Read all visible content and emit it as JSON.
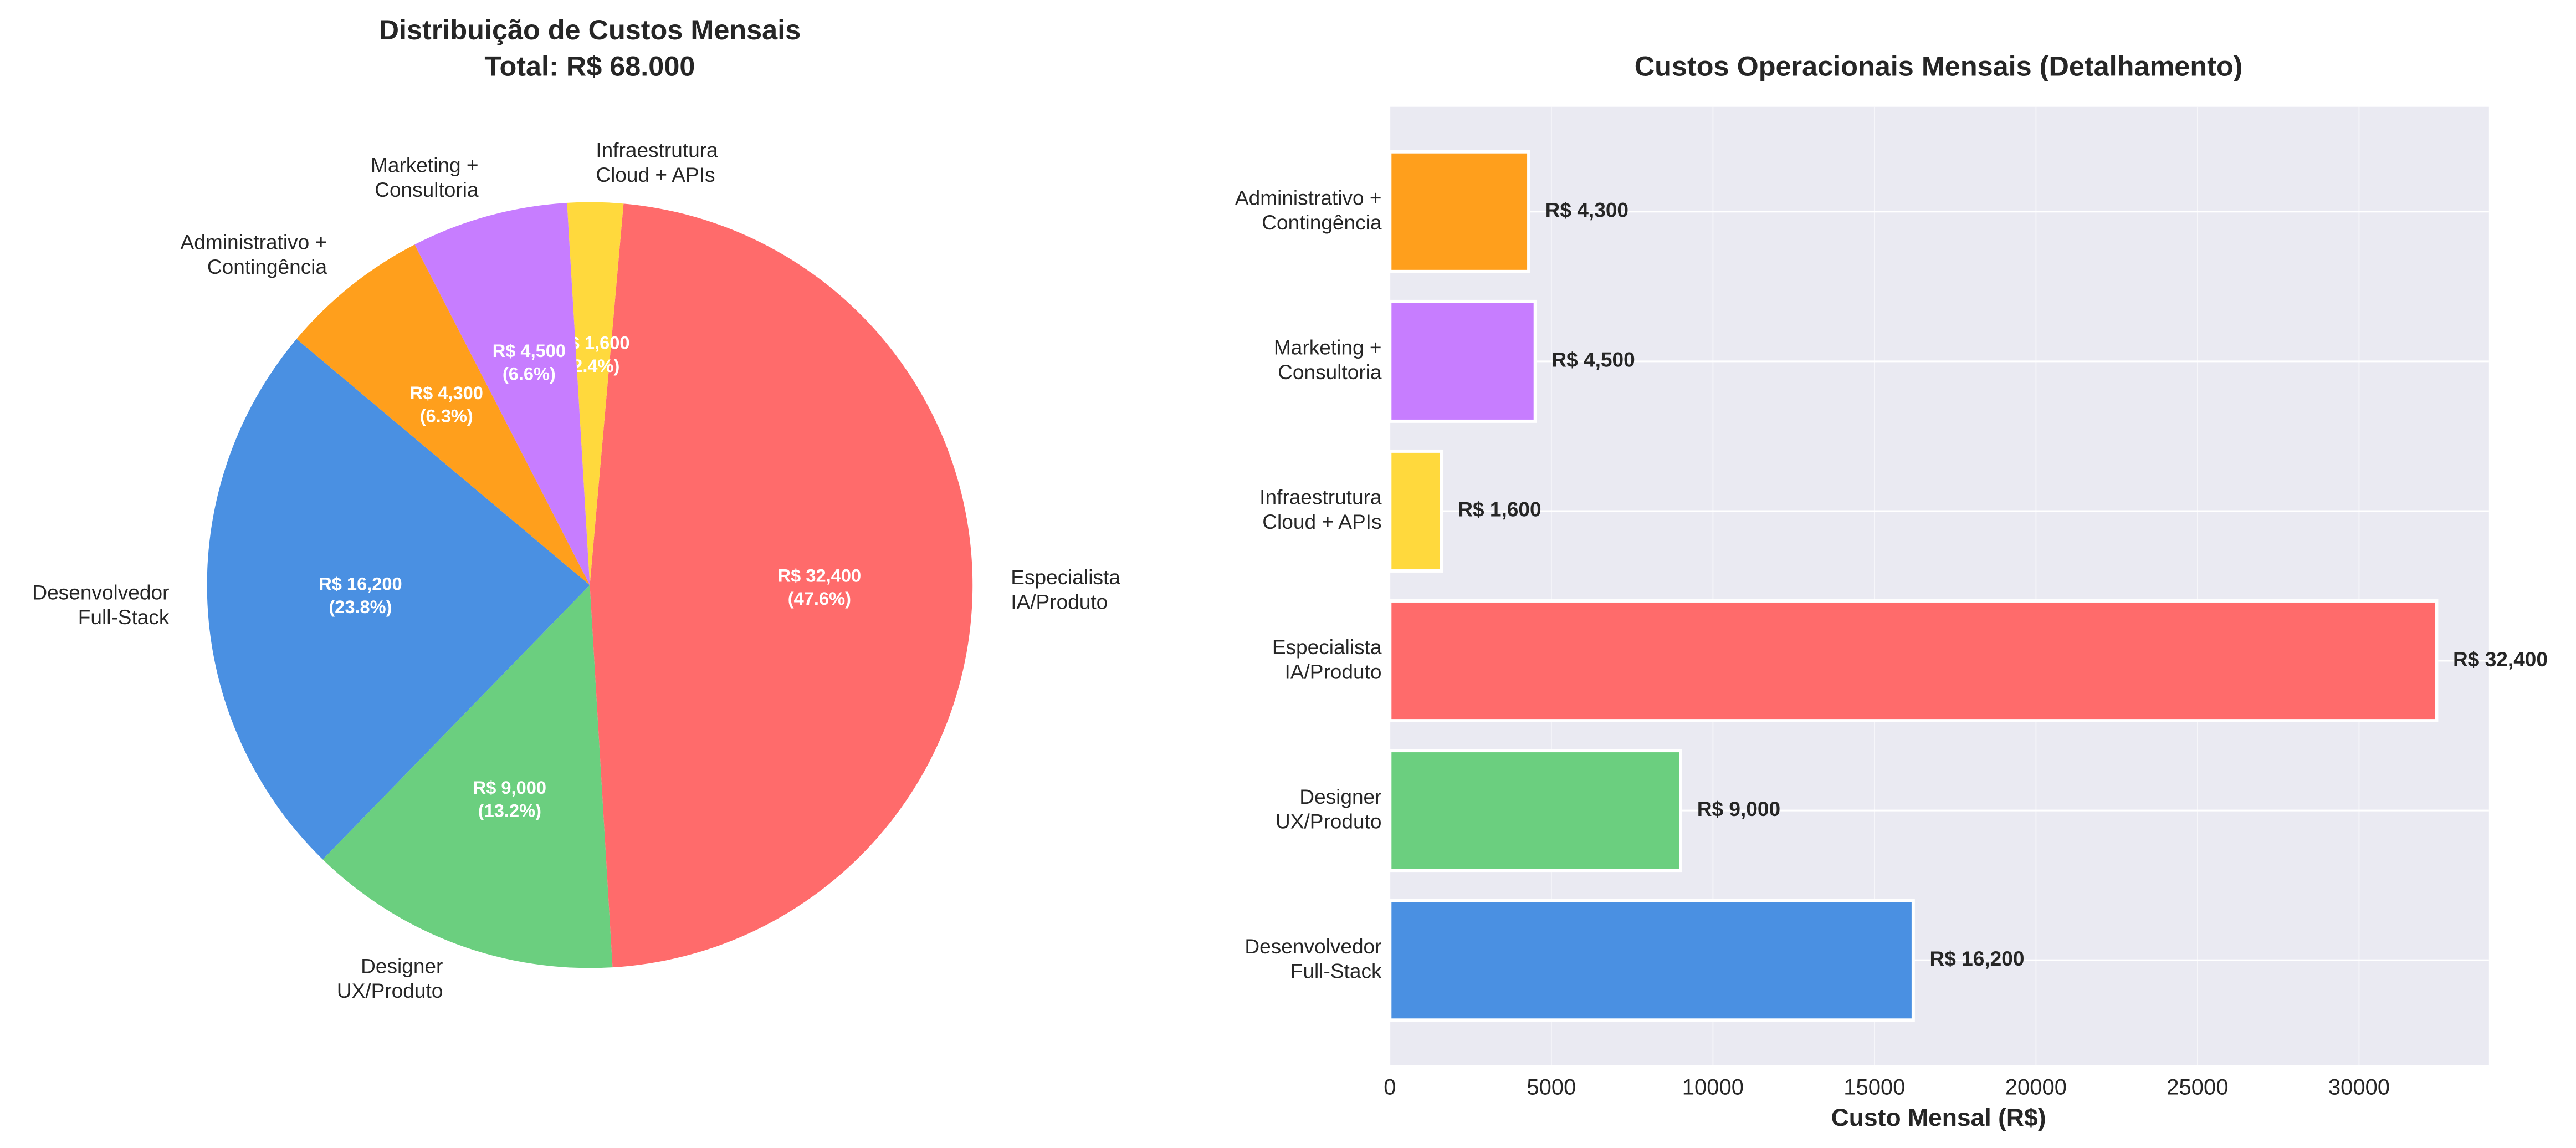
{
  "chart_data": [
    {
      "type": "pie",
      "title": "Distribuição de Custos Mensais",
      "subtitle": "Total: R$ 68.000",
      "start_angle_deg": 140,
      "direction": "counterclockwise",
      "slices": [
        {
          "label": [
            "Desenvolvedor",
            "Full-Stack"
          ],
          "value": 16200,
          "value_label": "R$ 16,200",
          "pct_label": "(23.8%)",
          "color": "#4A90E2"
        },
        {
          "label": [
            "Designer",
            "UX/Produto"
          ],
          "value": 9000,
          "value_label": "R$ 9,000",
          "pct_label": "(13.2%)",
          "color": "#6BCF7F"
        },
        {
          "label": [
            "Especialista",
            "IA/Produto"
          ],
          "value": 32400,
          "value_label": "R$ 32,400",
          "pct_label": "(47.6%)",
          "color": "#FF6B6B"
        },
        {
          "label": [
            "Infraestrutura",
            "Cloud + APIs"
          ],
          "value": 1600,
          "value_label": "R$ 1,600",
          "pct_label": "(2.4%)",
          "color": "#FFD93D"
        },
        {
          "label": [
            "Marketing +",
            "Consultoria"
          ],
          "value": 4500,
          "value_label": "R$ 4,500",
          "pct_label": "(6.6%)",
          "color": "#C77DFF"
        },
        {
          "label": [
            "Administrativo +",
            "Contingência"
          ],
          "value": 4300,
          "value_label": "R$ 4,300",
          "pct_label": "(6.3%)",
          "color": "#FF9F1C"
        }
      ]
    },
    {
      "type": "bar",
      "orientation": "horizontal",
      "title": "Custos Operacionais Mensais (Detalhamento)",
      "xlabel": "Custo Mensal (R$)",
      "ylabel": "",
      "xlim": [
        0,
        34020
      ],
      "xticks": [
        0,
        5000,
        10000,
        15000,
        20000,
        25000,
        30000
      ],
      "grid": true,
      "background": "#EAEAF2",
      "categories": [
        [
          "Desenvolvedor",
          "Full-Stack"
        ],
        [
          "Designer",
          "UX/Produto"
        ],
        [
          "Especialista",
          "IA/Produto"
        ],
        [
          "Infraestrutura",
          "Cloud + APIs"
        ],
        [
          "Marketing +",
          "Consultoria"
        ],
        [
          "Administrativo +",
          "Contingência"
        ]
      ],
      "values": [
        16200,
        9000,
        32400,
        1600,
        4500,
        4300
      ],
      "value_labels": [
        "R$ 16,200",
        "R$ 9,000",
        "R$ 32,400",
        "R$ 1,600",
        "R$ 4,500",
        "R$ 4,300"
      ],
      "colors": [
        "#4A90E2",
        "#6BCF7F",
        "#FF6B6B",
        "#FFD93D",
        "#C77DFF",
        "#FF9F1C"
      ]
    }
  ]
}
